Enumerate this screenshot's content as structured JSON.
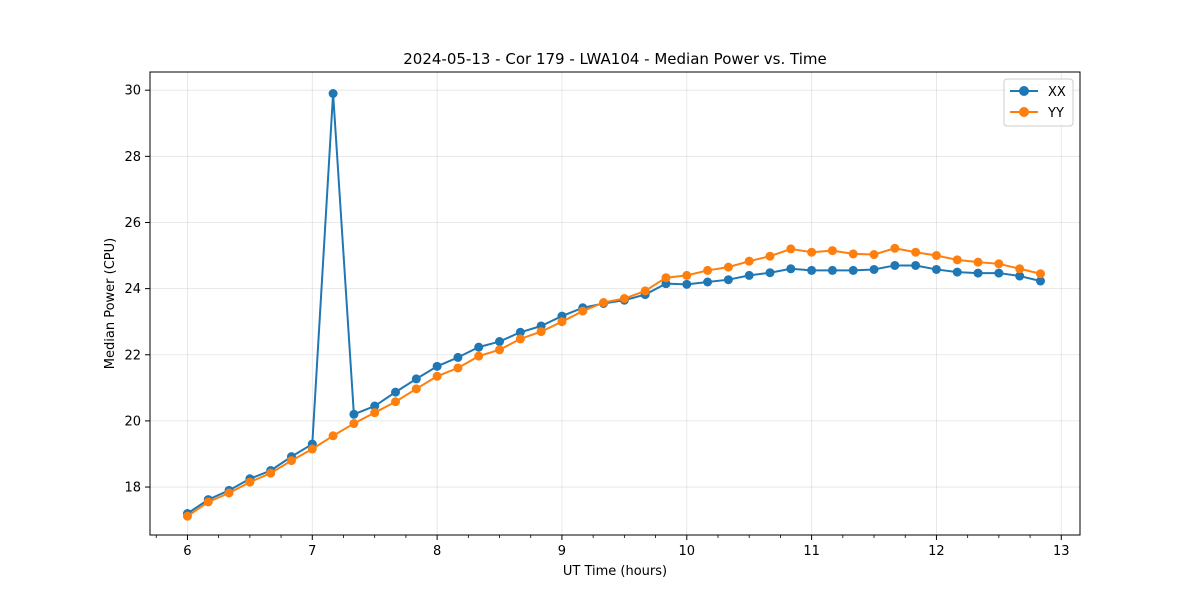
{
  "chart_data": {
    "type": "line",
    "title": "2024-05-13 - Cor 179 - LWA104 - Median Power vs. Time",
    "xlabel": "UT Time (hours)",
    "ylabel": "Median Power (CPU)",
    "xlim": [
      5.7,
      13.15
    ],
    "ylim": [
      16.55,
      30.55
    ],
    "xticks": [
      6,
      7,
      8,
      9,
      10,
      11,
      12,
      13
    ],
    "xtick_labels": [
      "6",
      "7",
      "8",
      "9",
      "10",
      "11",
      "12",
      "13"
    ],
    "xminor_step": 0.25,
    "yticks": [
      18,
      20,
      22,
      24,
      26,
      28,
      30
    ],
    "ytick_labels": [
      "18",
      "20",
      "22",
      "24",
      "26",
      "28",
      "30"
    ],
    "grid": true,
    "legend_position": "top-right",
    "x": [
      6.0,
      6.1667,
      6.3333,
      6.5,
      6.6667,
      6.8333,
      7.0,
      7.1667,
      7.3333,
      7.5,
      7.6667,
      7.8333,
      8.0,
      8.1667,
      8.3333,
      8.5,
      8.6667,
      8.8333,
      9.0,
      9.1667,
      9.3333,
      9.5,
      9.6667,
      9.8333,
      10.0,
      10.1667,
      10.3333,
      10.5,
      10.6667,
      10.8333,
      11.0,
      11.1667,
      11.3333,
      11.5,
      11.6667,
      11.8333,
      12.0,
      12.1667,
      12.3333,
      12.5,
      12.6667,
      12.8333
    ],
    "series": [
      {
        "name": "XX",
        "color": "#1f77b4",
        "values": [
          17.2,
          17.62,
          17.9,
          18.25,
          18.5,
          18.92,
          19.3,
          29.9,
          20.2,
          20.45,
          20.87,
          21.27,
          21.65,
          21.92,
          22.23,
          22.4,
          22.68,
          22.87,
          23.17,
          23.42,
          23.55,
          23.65,
          23.82,
          24.15,
          24.13,
          24.2,
          24.27,
          24.4,
          24.48,
          24.6,
          24.55,
          24.55,
          24.55,
          24.58,
          24.7,
          24.7,
          24.58,
          24.5,
          24.47,
          24.47,
          24.38,
          24.23
        ]
      },
      {
        "name": "YY",
        "color": "#ff7f0e",
        "values": [
          17.12,
          17.55,
          17.82,
          18.15,
          18.42,
          18.8,
          19.15,
          19.55,
          19.92,
          20.25,
          20.58,
          20.97,
          21.35,
          21.6,
          21.96,
          22.15,
          22.48,
          22.7,
          23.0,
          23.32,
          23.58,
          23.7,
          23.93,
          24.33,
          24.4,
          24.55,
          24.65,
          24.83,
          24.98,
          25.2,
          25.1,
          25.15,
          25.05,
          25.03,
          25.22,
          25.1,
          25.0,
          24.87,
          24.8,
          24.75,
          24.6,
          24.45
        ]
      }
    ]
  }
}
